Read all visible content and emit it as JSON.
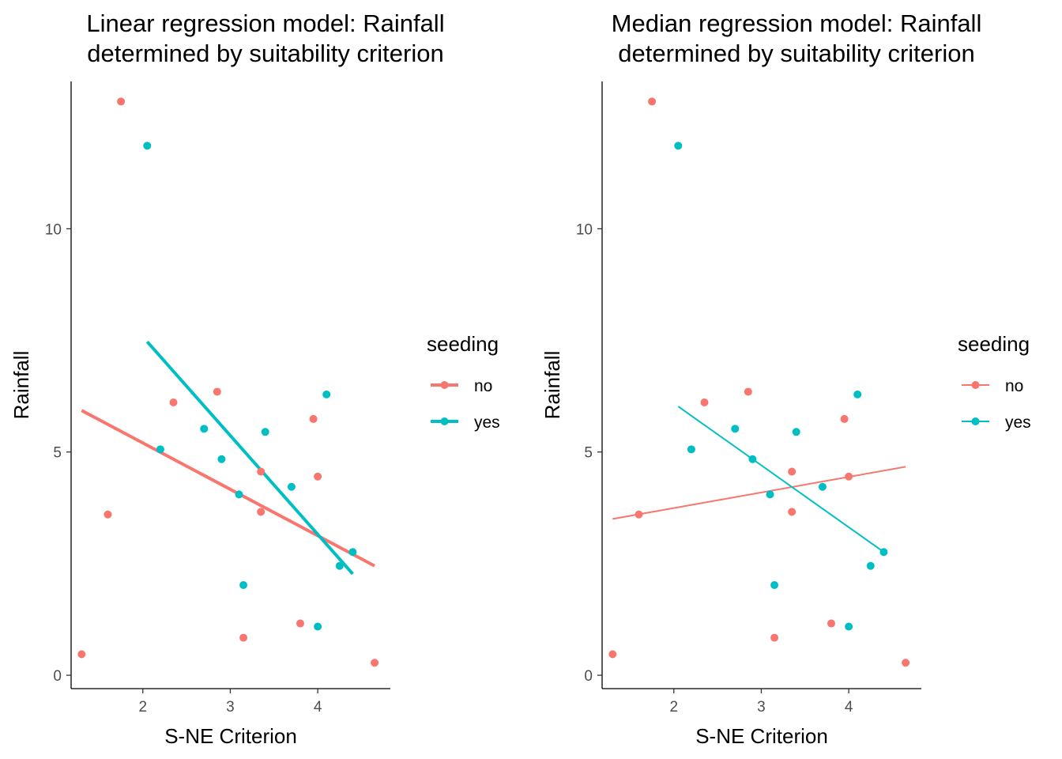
{
  "chart_data": [
    {
      "type": "scatter",
      "title": [
        "Linear regression model: Rainfall",
        "determined by suitability criterion"
      ],
      "xlabel": "S-NE Criterion",
      "ylabel": "Rainfall",
      "xlim": [
        1.18,
        4.83
      ],
      "ylim": [
        -0.3,
        13.3
      ],
      "x_ticks": [
        2,
        3,
        4
      ],
      "y_ticks": [
        0,
        5,
        10
      ],
      "grid": false,
      "legend": {
        "title": "seeding",
        "position": "right",
        "entries": [
          "no",
          "yes"
        ]
      },
      "series": [
        {
          "name": "no",
          "color": "#F8766D",
          "points": [
            [
              1.75,
              12.85
            ],
            [
              2.35,
              6.11
            ],
            [
              2.85,
              6.35
            ],
            [
              3.35,
              4.56
            ],
            [
              3.35,
              3.66
            ],
            [
              3.95,
              5.74
            ],
            [
              4.0,
              4.45
            ],
            [
              1.6,
              3.6
            ],
            [
              1.3,
              0.47
            ],
            [
              3.15,
              0.84
            ],
            [
              3.8,
              1.16
            ],
            [
              4.65,
              0.28
            ]
          ],
          "fit": {
            "x": [
              1.3,
              4.65
            ],
            "y": [
              5.93,
              2.45
            ]
          }
        },
        {
          "name": "yes",
          "color": "#00BFC4",
          "points": [
            [
              2.05,
              11.86
            ],
            [
              2.2,
              5.06
            ],
            [
              2.7,
              5.52
            ],
            [
              2.9,
              4.84
            ],
            [
              3.1,
              4.05
            ],
            [
              3.4,
              5.45
            ],
            [
              3.7,
              4.22
            ],
            [
              4.1,
              6.29
            ],
            [
              4.25,
              2.45
            ],
            [
              4.4,
              2.76
            ],
            [
              3.15,
              2.02
            ],
            [
              4.0,
              1.09
            ]
          ],
          "fit": {
            "x": [
              2.05,
              4.4
            ],
            "y": [
              7.47,
              2.27
            ]
          }
        }
      ]
    },
    {
      "type": "scatter",
      "title": [
        "Median regression model: Rainfall",
        "determined by suitability criterion"
      ],
      "xlabel": "S-NE Criterion",
      "ylabel": "Rainfall",
      "xlim": [
        1.18,
        4.83
      ],
      "ylim": [
        -0.3,
        13.3
      ],
      "x_ticks": [
        2,
        3,
        4
      ],
      "y_ticks": [
        0,
        5,
        10
      ],
      "grid": false,
      "legend": {
        "title": "seeding",
        "position": "right",
        "entries": [
          "no",
          "yes"
        ]
      },
      "series": [
        {
          "name": "no",
          "color": "#F8766D",
          "points": [
            [
              1.75,
              12.85
            ],
            [
              2.35,
              6.11
            ],
            [
              2.85,
              6.35
            ],
            [
              3.35,
              4.56
            ],
            [
              3.35,
              3.66
            ],
            [
              3.95,
              5.74
            ],
            [
              4.0,
              4.45
            ],
            [
              1.6,
              3.6
            ],
            [
              1.3,
              0.47
            ],
            [
              3.15,
              0.84
            ],
            [
              3.8,
              1.16
            ],
            [
              4.65,
              0.28
            ]
          ],
          "fit": {
            "x": [
              1.3,
              4.65
            ],
            "y": [
              3.5,
              4.67
            ]
          }
        },
        {
          "name": "yes",
          "color": "#00BFC4",
          "points": [
            [
              2.05,
              11.86
            ],
            [
              2.2,
              5.06
            ],
            [
              2.7,
              5.52
            ],
            [
              2.9,
              4.84
            ],
            [
              3.1,
              4.05
            ],
            [
              3.4,
              5.45
            ],
            [
              3.7,
              4.22
            ],
            [
              4.1,
              6.29
            ],
            [
              4.25,
              2.45
            ],
            [
              4.4,
              2.76
            ],
            [
              3.15,
              2.02
            ],
            [
              4.0,
              1.09
            ]
          ],
          "fit": {
            "x": [
              2.05,
              4.4
            ],
            "y": [
              6.02,
              2.76
            ]
          }
        }
      ]
    }
  ]
}
